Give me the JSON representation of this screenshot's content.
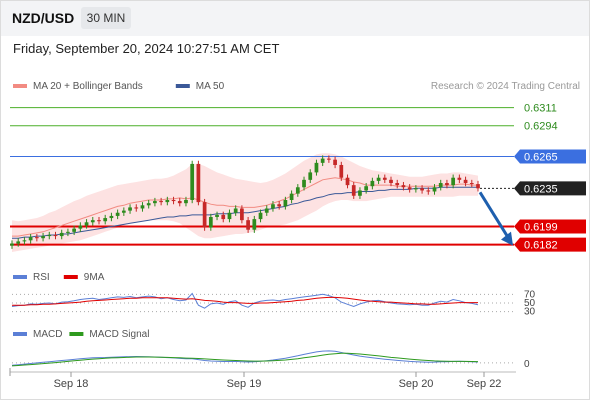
{
  "header": {
    "symbol": "NZD/USD",
    "timeframe": "30 MIN"
  },
  "timestamp": "Friday, September 20, 2024 10:27:51 AM CET",
  "watermark": "Research © 2024 Trading Central",
  "legend": [
    {
      "label": "MA 20 + Bollinger Bands",
      "color": "#f28b82"
    },
    {
      "label": "MA 50",
      "color": "#3b5998"
    }
  ],
  "rsi_legend": [
    {
      "label": "RSI",
      "color": "#5b7fd6"
    },
    {
      "label": "9MA",
      "color": "#e00000"
    }
  ],
  "macd_legend": [
    {
      "label": "MACD",
      "color": "#5b7fd6"
    },
    {
      "label": "MACD Signal",
      "color": "#2e9a1e"
    }
  ],
  "chart_data": {
    "type": "candlestick",
    "instrument": "NZD/USD",
    "interval": "30 MIN",
    "x_ticks": [
      "Sep 18",
      "Sep 19",
      "Sep 20",
      "Sep 22"
    ],
    "price_ylim": [
      0.6175,
      0.6322
    ],
    "levels": [
      {
        "value": "0.6311",
        "kind": "resistance",
        "color": "#4caf28"
      },
      {
        "value": "0.6294",
        "kind": "resistance",
        "color": "#4caf28"
      },
      {
        "value": "0.6265",
        "kind": "pivot",
        "color": "#3b6fe0"
      },
      {
        "value": "0.6235",
        "kind": "last price",
        "color": "#222222"
      },
      {
        "value": "0.6199",
        "kind": "support",
        "color": "#e00000"
      },
      {
        "value": "0.6182",
        "kind": "support",
        "color": "#e00000"
      }
    ],
    "close_series": [
      0.6183,
      0.6185,
      0.6186,
      0.6189,
      0.6188,
      0.619,
      0.6191,
      0.619,
      0.6193,
      0.6194,
      0.6197,
      0.62,
      0.6203,
      0.6205,
      0.6204,
      0.6207,
      0.6209,
      0.6212,
      0.6214,
      0.6217,
      0.6216,
      0.6219,
      0.6221,
      0.6223,
      0.6222,
      0.6224,
      0.6223,
      0.6221,
      0.6224,
      0.6258,
      0.6222,
      0.6198,
      0.6208,
      0.621,
      0.6206,
      0.6212,
      0.6216,
      0.6205,
      0.6196,
      0.6206,
      0.6212,
      0.6216,
      0.622,
      0.6218,
      0.6224,
      0.623,
      0.6236,
      0.6243,
      0.625,
      0.6259,
      0.6263,
      0.6262,
      0.6257,
      0.6245,
      0.6238,
      0.6228,
      0.6233,
      0.6237,
      0.6242,
      0.6245,
      0.6243,
      0.624,
      0.6238,
      0.6236,
      0.6234,
      0.6235,
      0.6233,
      0.6232,
      0.6236,
      0.624,
      0.6238,
      0.6245,
      0.6243,
      0.624,
      0.6239,
      0.6235
    ],
    "bollinger_upper": [
      0.6205,
      0.6204,
      0.6205,
      0.6206,
      0.6207,
      0.6209,
      0.6212,
      0.6214,
      0.6217,
      0.622,
      0.6223,
      0.6225,
      0.6228,
      0.623,
      0.6232,
      0.6234,
      0.6236,
      0.6238,
      0.6239,
      0.624,
      0.6241,
      0.6242,
      0.6243,
      0.6244,
      0.6244,
      0.6245,
      0.6247,
      0.625,
      0.6253,
      0.6258,
      0.6258,
      0.6256,
      0.6253,
      0.625,
      0.6248,
      0.6246,
      0.6244,
      0.6243,
      0.6242,
      0.6241,
      0.624,
      0.6241,
      0.6243,
      0.6246,
      0.6249,
      0.6253,
      0.6257,
      0.6261,
      0.6264,
      0.6267,
      0.6268,
      0.6268,
      0.6267,
      0.6265,
      0.6262,
      0.6259,
      0.6256,
      0.6254,
      0.6252,
      0.6251,
      0.625,
      0.6249,
      0.6248,
      0.6247,
      0.6246,
      0.6246,
      0.6246,
      0.6247,
      0.6248,
      0.6249,
      0.6249,
      0.625,
      0.625,
      0.6249,
      0.6248,
      0.6247
    ],
    "bollinger_lower": [
      0.6175,
      0.6176,
      0.6177,
      0.6178,
      0.6179,
      0.618,
      0.6181,
      0.6182,
      0.6183,
      0.6184,
      0.6185,
      0.6186,
      0.6188,
      0.619,
      0.6192,
      0.6194,
      0.6196,
      0.6198,
      0.62,
      0.6202,
      0.6203,
      0.6204,
      0.6205,
      0.6205,
      0.6205,
      0.6205,
      0.6204,
      0.6202,
      0.6198,
      0.6194,
      0.619,
      0.6188,
      0.6188,
      0.6189,
      0.619,
      0.6191,
      0.6192,
      0.6192,
      0.6193,
      0.6194,
      0.6196,
      0.6198,
      0.6199,
      0.62,
      0.6201,
      0.6203,
      0.6205,
      0.6208,
      0.6211,
      0.6214,
      0.6218,
      0.6221,
      0.6223,
      0.6224,
      0.6224,
      0.6223,
      0.6223,
      0.6223,
      0.6224,
      0.6225,
      0.6226,
      0.6227,
      0.6227,
      0.6227,
      0.6227,
      0.6227,
      0.6227,
      0.6227,
      0.6227,
      0.6227,
      0.6227,
      0.6227,
      0.6228,
      0.6228,
      0.6228,
      0.6228
    ],
    "ma20": [
      0.619,
      0.619,
      0.6191,
      0.6192,
      0.6193,
      0.6194,
      0.6196,
      0.6198,
      0.62,
      0.6202,
      0.6204,
      0.6206,
      0.6208,
      0.621,
      0.6212,
      0.6214,
      0.6216,
      0.6218,
      0.6219,
      0.6221,
      0.6222,
      0.6223,
      0.6224,
      0.6224,
      0.6224,
      0.6225,
      0.6225,
      0.6226,
      0.6225,
      0.6226,
      0.6224,
      0.6222,
      0.622,
      0.6219,
      0.6219,
      0.6218,
      0.6218,
      0.6217,
      0.6217,
      0.6217,
      0.6218,
      0.6219,
      0.6221,
      0.6223,
      0.6225,
      0.6228,
      0.6231,
      0.6234,
      0.6237,
      0.624,
      0.6243,
      0.6244,
      0.6245,
      0.6244,
      0.6243,
      0.6241,
      0.624,
      0.6238,
      0.6238,
      0.6238,
      0.6238,
      0.6238,
      0.6237,
      0.6237,
      0.6237,
      0.6237,
      0.6237,
      0.6237,
      0.6237,
      0.6238,
      0.6238,
      0.6238,
      0.6239,
      0.6239,
      0.6238,
      0.6238
    ],
    "ma50": [
      0.6188,
      0.6188,
      0.6189,
      0.6189,
      0.619,
      0.619,
      0.6191,
      0.6191,
      0.6192,
      0.6192,
      0.6193,
      0.6194,
      0.6195,
      0.6196,
      0.6197,
      0.6198,
      0.6199,
      0.62,
      0.6201,
      0.6202,
      0.6203,
      0.6204,
      0.6205,
      0.6206,
      0.6207,
      0.6208,
      0.6208,
      0.6209,
      0.6209,
      0.621,
      0.621,
      0.621,
      0.621,
      0.6211,
      0.6211,
      0.6211,
      0.6212,
      0.6212,
      0.6212,
      0.6213,
      0.6214,
      0.6215,
      0.6216,
      0.6217,
      0.6218,
      0.622,
      0.6221,
      0.6223,
      0.6224,
      0.6226,
      0.6227,
      0.6229,
      0.623,
      0.623,
      0.6231,
      0.6231,
      0.6232,
      0.6232,
      0.6232,
      0.6233,
      0.6233,
      0.6234,
      0.6234,
      0.6234,
      0.6234,
      0.6235,
      0.6235,
      0.6235,
      0.6235,
      0.6236,
      0.6236,
      0.6236,
      0.6236,
      0.6236,
      0.6236,
      0.6236
    ],
    "forecast_target": 0.6182,
    "rsi": {
      "levels": [
        "70",
        "50",
        "30"
      ],
      "rsi_values": [
        42,
        44,
        45,
        48,
        47,
        49,
        50,
        48,
        52,
        53,
        55,
        58,
        60,
        61,
        58,
        60,
        62,
        64,
        63,
        65,
        62,
        64,
        66,
        64,
        60,
        62,
        58,
        55,
        57,
        72,
        45,
        38,
        48,
        50,
        47,
        53,
        55,
        45,
        40,
        50,
        54,
        56,
        57,
        55,
        58,
        60,
        62,
        64,
        66,
        68,
        70,
        67,
        62,
        52,
        47,
        42,
        48,
        52,
        55,
        56,
        53,
        50,
        48,
        47,
        46,
        47,
        45,
        45,
        50,
        54,
        52,
        58,
        55,
        51,
        49,
        46
      ],
      "ma_values": [
        45,
        45,
        45,
        46,
        46,
        47,
        47,
        48,
        49,
        50,
        51,
        52,
        54,
        55,
        56,
        57,
        58,
        59,
        60,
        61,
        61,
        62,
        62,
        62,
        62,
        62,
        61,
        60,
        59,
        60,
        58,
        56,
        55,
        54,
        52,
        51,
        51,
        50,
        49,
        49,
        50,
        50,
        51,
        52,
        53,
        54,
        56,
        57,
        59,
        61,
        62,
        63,
        63,
        62,
        61,
        59,
        57,
        55,
        54,
        53,
        52,
        52,
        51,
        50,
        49,
        48,
        48,
        47,
        47,
        48,
        49,
        50,
        51,
        51,
        51,
        51
      ],
      "ylim": [
        20,
        80
      ]
    },
    "macd": {
      "zero_label": "0",
      "macd_values": [
        -2,
        -1.5,
        -1,
        -0.5,
        0,
        0.5,
        1,
        1.5,
        2,
        2.5,
        3,
        3.5,
        4,
        4.3,
        4.5,
        4.6,
        4.8,
        5,
        5.2,
        5.3,
        5.4,
        5.3,
        5.2,
        5,
        4.8,
        4.5,
        4.2,
        3.8,
        3.5,
        3.6,
        2.8,
        2,
        1.6,
        1.4,
        1.2,
        1.2,
        1.3,
        1,
        0.8,
        1,
        1.4,
        1.9,
        2.5,
        3.2,
        4,
        5,
        6,
        7.2,
        8.3,
        9.3,
        10,
        10.2,
        9.8,
        8.8,
        7.8,
        6.7,
        5.8,
        5,
        4.3,
        3.7,
        3.1,
        2.6,
        2.1,
        1.7,
        1.3,
        1,
        0.8,
        0.6,
        0.7,
        0.9,
        1,
        1.3,
        1.4,
        1.2,
        1,
        0.8
      ],
      "signal_values": [
        -2.5,
        -2.2,
        -1.8,
        -1.4,
        -1,
        -0.6,
        -0.2,
        0.3,
        0.8,
        1.3,
        1.8,
        2.3,
        2.8,
        3.2,
        3.6,
        3.9,
        4.2,
        4.4,
        4.6,
        4.8,
        5,
        5,
        5,
        4.9,
        4.8,
        4.7,
        4.5,
        4.3,
        4.1,
        3.9,
        3.7,
        3.4,
        3.1,
        2.8,
        2.5,
        2.2,
        2,
        1.8,
        1.6,
        1.5,
        1.5,
        1.6,
        1.8,
        2.1,
        2.5,
        3,
        3.6,
        4.3,
        5,
        5.8,
        6.6,
        7.3,
        7.8,
        8.1,
        8.1,
        7.9,
        7.5,
        7,
        6.5,
        5.9,
        5.3,
        4.7,
        4.2,
        3.7,
        3.2,
        2.8,
        2.4,
        2,
        1.7,
        1.5,
        1.4,
        1.3,
        1.3,
        1.3,
        1.2,
        1.1
      ],
      "ylim": [
        -6,
        16
      ]
    }
  }
}
